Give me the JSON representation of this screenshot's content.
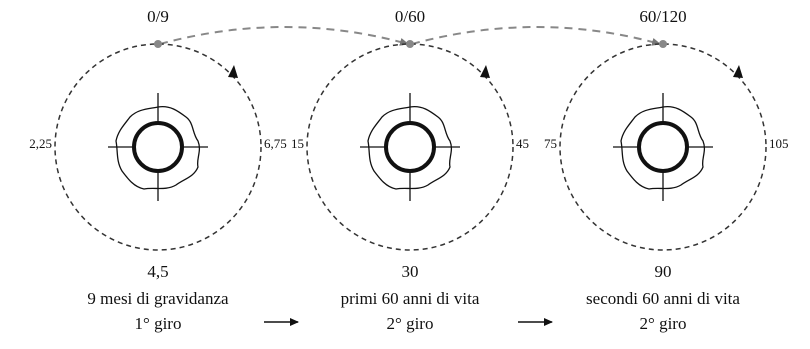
{
  "diagrams": [
    {
      "top": "0/9",
      "left": "2,25",
      "right": "6,75",
      "bottom": "4,5",
      "caption": [
        "9 mesi di gravidanza",
        "1° giro"
      ]
    },
    {
      "top": "0/60",
      "left": "15",
      "right": "45",
      "bottom": "30",
      "caption": [
        "primi 60 anni di vita",
        "2° giro"
      ]
    },
    {
      "top": "60/120",
      "left": "75",
      "right": "105",
      "bottom": "90",
      "caption": [
        "secondi 60 anni di vita",
        "2° giro"
      ]
    }
  ]
}
